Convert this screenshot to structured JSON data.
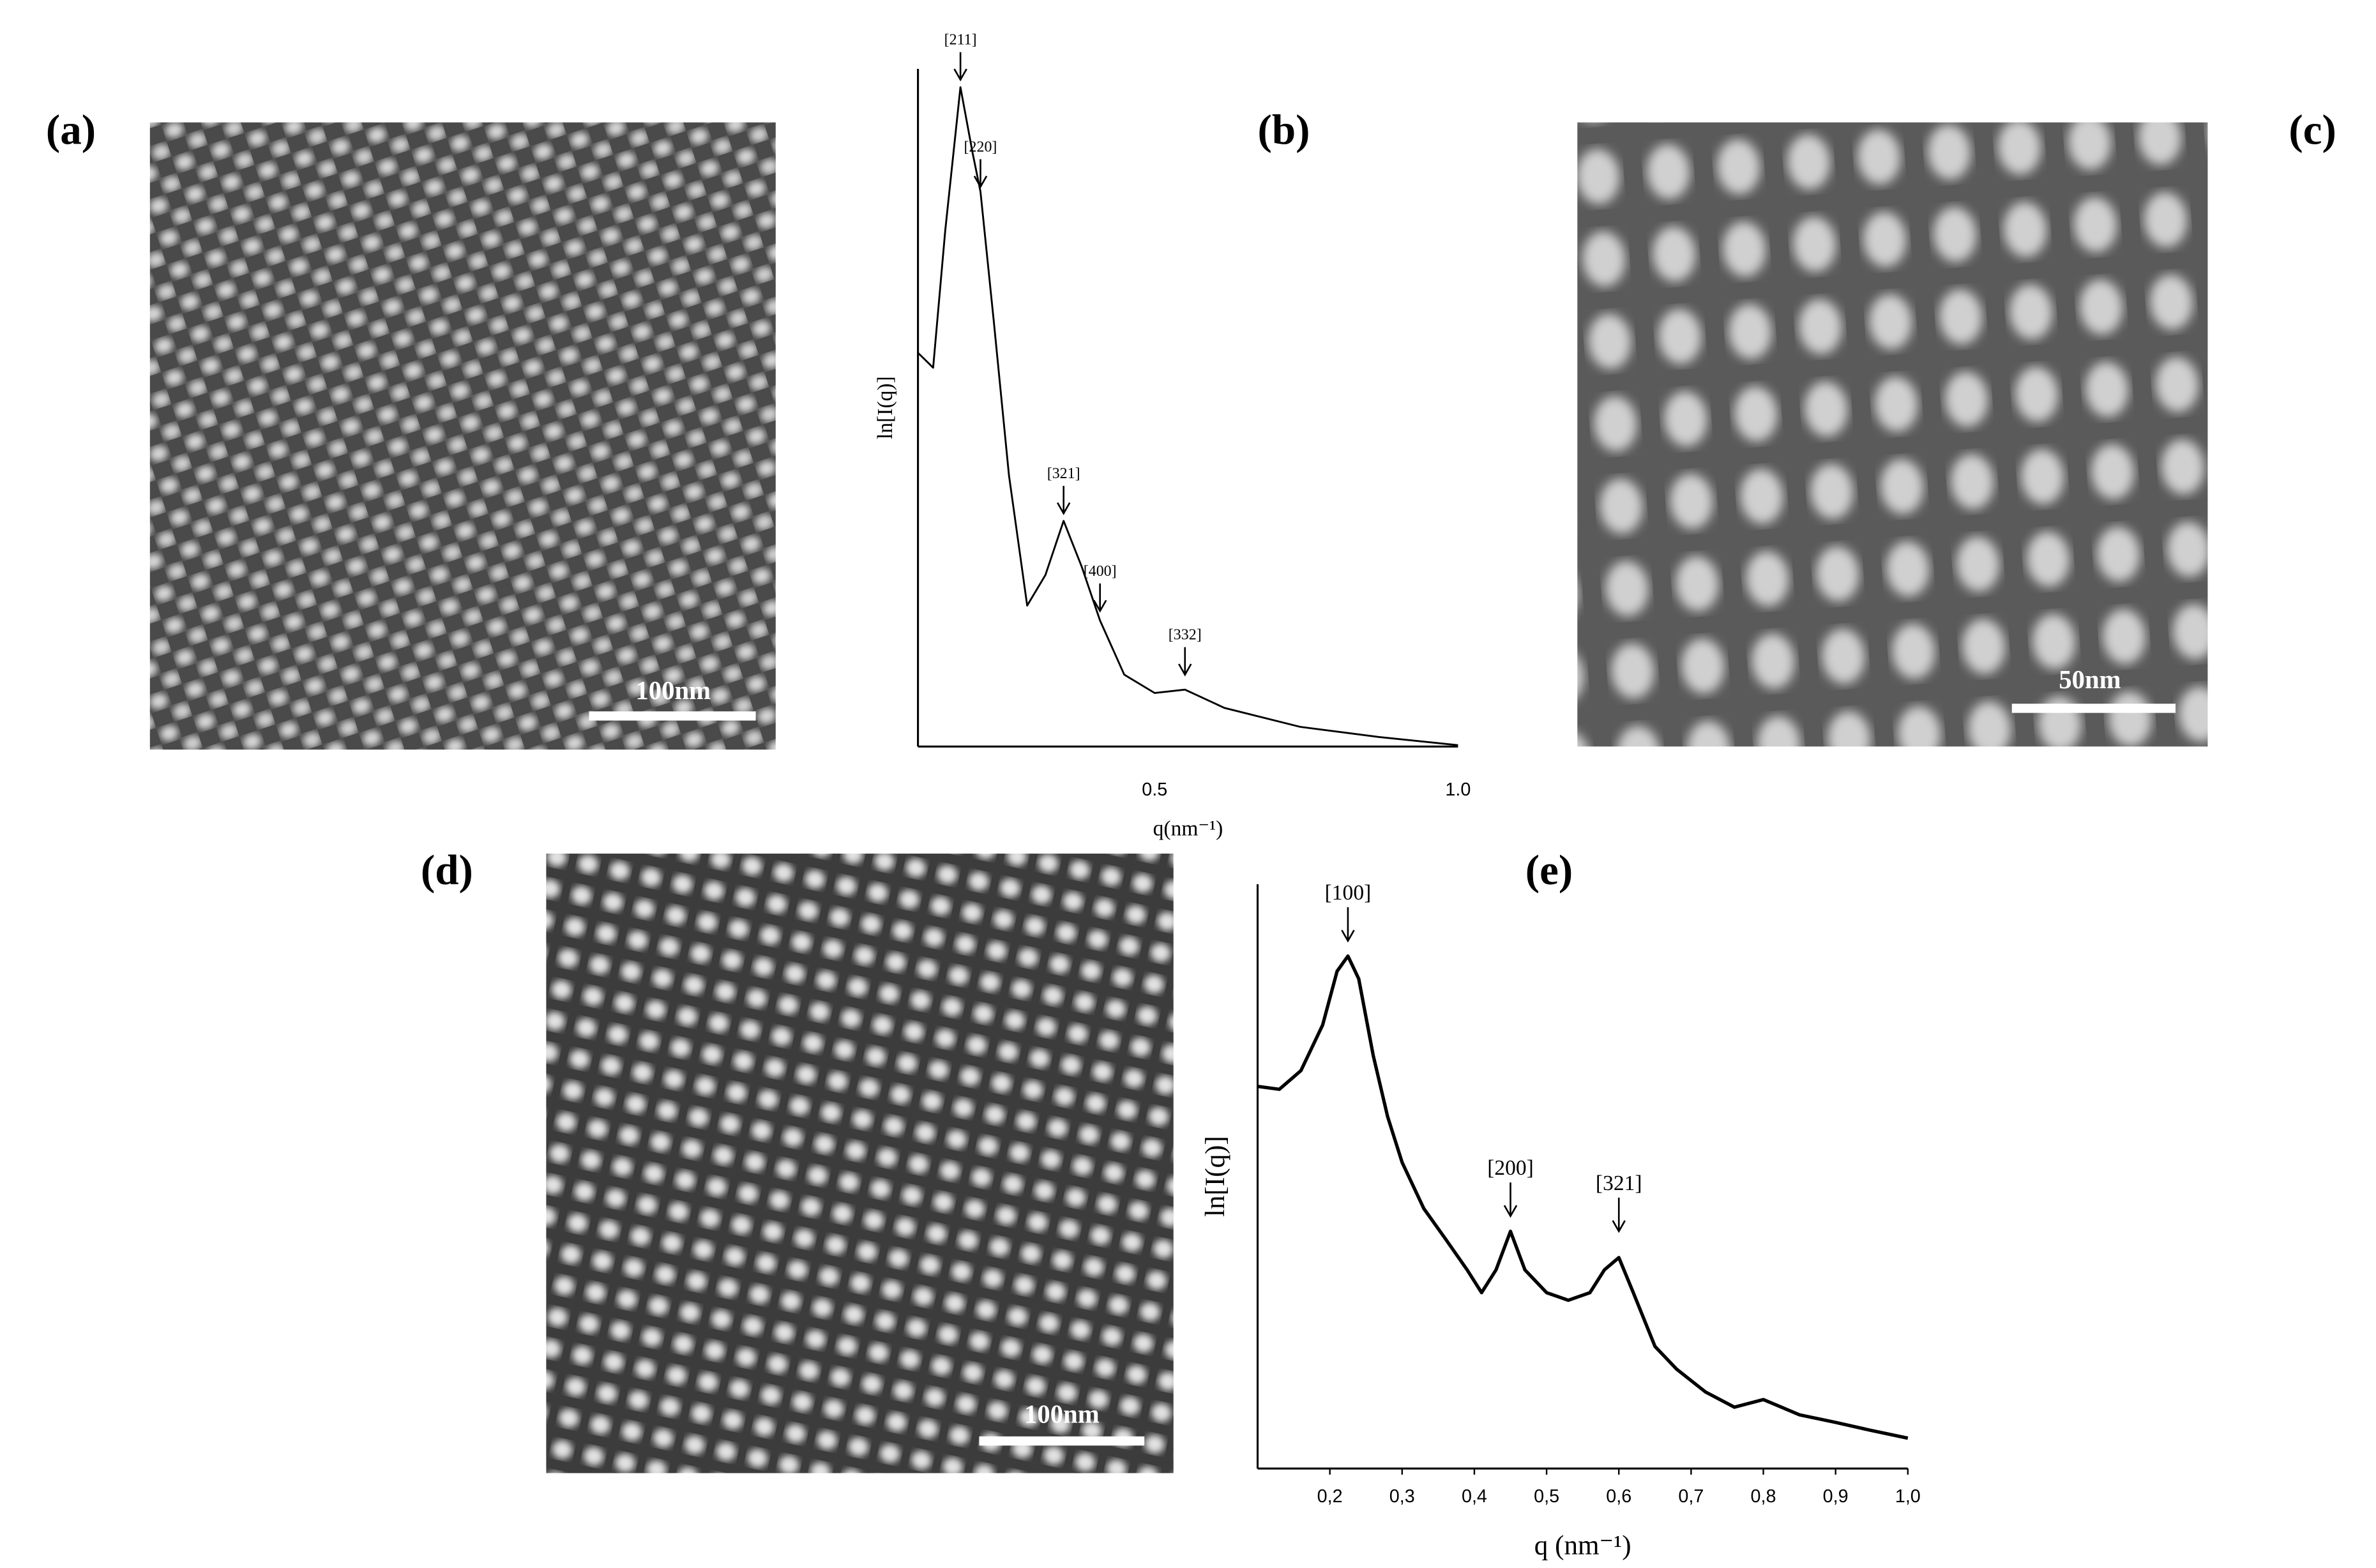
{
  "panels": [
    {
      "label": "(a)",
      "scale_bar": "100nm"
    },
    {
      "label": "(b)"
    },
    {
      "label": "(c)",
      "scale_bar": "50nm"
    },
    {
      "label": "(d)",
      "scale_bar": "100nm"
    },
    {
      "label": "(e)"
    }
  ],
  "chart_data": [
    {
      "type": "line",
      "color": "#000000",
      "xlabel": "q(nm⁻¹)",
      "ylabel": "ln[I(q)]",
      "x": [
        0.11,
        0.135,
        0.155,
        0.18,
        0.2,
        0.213,
        0.235,
        0.26,
        0.29,
        0.32,
        0.35,
        0.38,
        0.41,
        0.45,
        0.5,
        0.55,
        0.615,
        0.74,
        0.87,
        1.0
      ],
      "values": [
        5.81,
        5.59,
        7.62,
        9.73,
        8.76,
        8.19,
        6.27,
        4.0,
        2.08,
        2.53,
        3.33,
        2.65,
        1.86,
        1.06,
        0.79,
        0.84,
        0.57,
        0.29,
        0.14,
        0.02
      ],
      "xlim": [
        0.11,
        1.0
      ],
      "xticks": [
        0.5,
        {
          "value": 1,
          "label": "1.0"
        }
      ],
      "ylim": [
        0,
        10
      ],
      "annotations": [
        {
          "text": "[211]",
          "x": 0.18,
          "y": 9.84
        },
        {
          "text": "[220]",
          "x": 0.213,
          "y": 8.26
        },
        {
          "text": "[321]",
          "x": 0.35,
          "y": 3.44
        },
        {
          "text": "[400]",
          "x": 0.41,
          "y": 2.0
        },
        {
          "text": "[332]",
          "x": 0.55,
          "y": 1.06
        }
      ]
    },
    {
      "type": "line",
      "color": "#000000",
      "xlabel": "q (nm⁻¹)",
      "ylabel": "ln[I(q)]",
      "x": [
        0.1,
        0.13,
        0.16,
        0.19,
        0.21,
        0.225,
        0.24,
        0.26,
        0.28,
        0.3,
        0.33,
        0.36,
        0.39,
        0.41,
        0.43,
        0.45,
        0.47,
        0.5,
        0.53,
        0.56,
        0.58,
        0.6,
        0.62,
        0.65,
        0.68,
        0.72,
        0.76,
        0.8,
        0.85,
        0.9,
        0.95,
        1.0
      ],
      "values": [
        6.54,
        6.49,
        6.81,
        7.59,
        8.51,
        8.77,
        8.38,
        7.07,
        6.02,
        5.24,
        4.45,
        3.93,
        3.4,
        3.01,
        3.4,
        4.06,
        3.4,
        3.01,
        2.88,
        3.01,
        3.4,
        3.61,
        3.01,
        2.09,
        1.7,
        1.31,
        1.05,
        1.18,
        0.92,
        0.79,
        0.65,
        0.52
      ],
      "xlim": [
        0.1,
        1.0
      ],
      "xticks": [
        {
          "value": 0.2,
          "label": "0,2"
        },
        {
          "value": 0.3,
          "label": "0,3"
        },
        {
          "value": 0.4,
          "label": "0,4"
        },
        {
          "value": 0.5,
          "label": "0,5"
        },
        {
          "value": 0.6,
          "label": "0,6"
        },
        {
          "value": 0.7,
          "label": "0,7"
        },
        {
          "value": 0.8,
          "label": "0,8"
        },
        {
          "value": 0.9,
          "label": "0,9"
        },
        {
          "value": 1,
          "label": "1,0"
        }
      ],
      "ylim": [
        0,
        10
      ],
      "annotations": [
        {
          "text": "[100]",
          "x": 0.225,
          "y": 9.03
        },
        {
          "text": "[200]",
          "x": 0.45,
          "y": 4.32
        },
        {
          "text": "[321]",
          "x": 0.6,
          "y": 4.06
        }
      ]
    }
  ]
}
